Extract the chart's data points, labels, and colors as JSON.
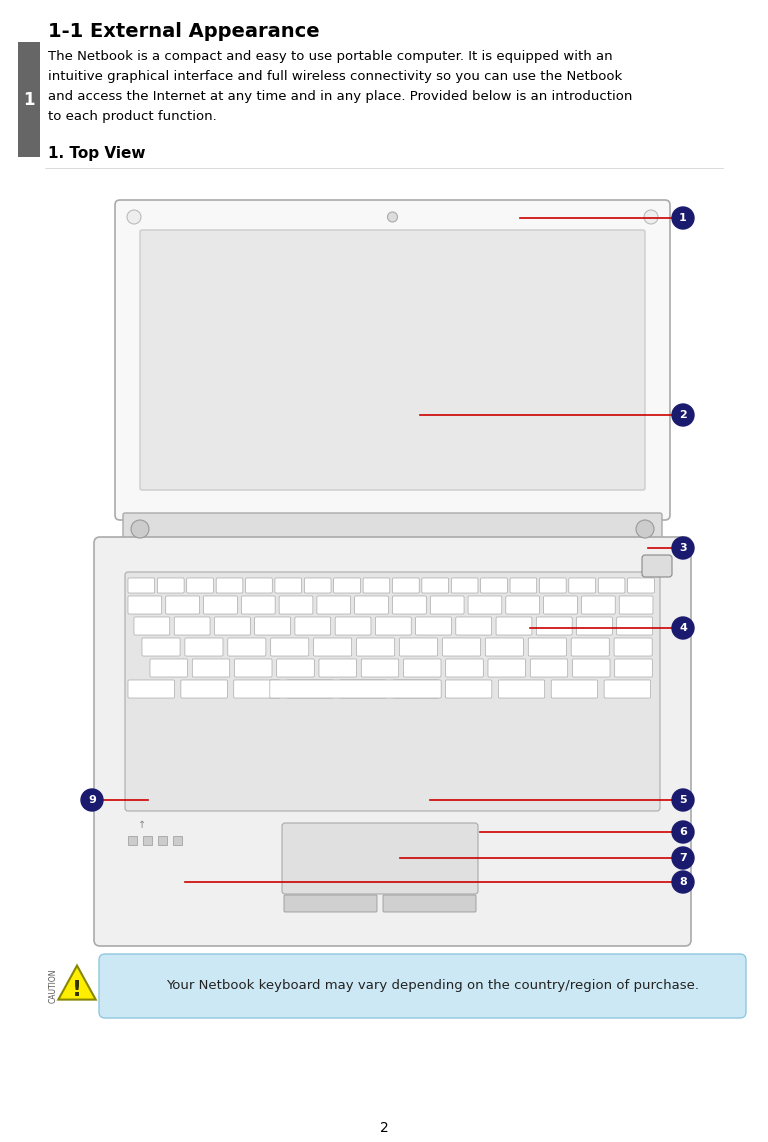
{
  "title": "1-1 External Appearance",
  "section_label": "1",
  "body_lines": [
    "The Netbook is a compact and easy to use portable computer. It is equipped with an",
    "intuitive graphical interface and full wireless connectivity so you can use the Netbook",
    "and access the Internet at any time and in any place. Provided below is an introduction",
    "to each product function."
  ],
  "subheading": "1. Top View",
  "caution_text": "Your Netbook keyboard may vary depending on the country/region of purchase.",
  "page_number": "2",
  "bg_color": "#ffffff",
  "title_color": "#000000",
  "body_color": "#000000",
  "red_line_color": "#cc0000",
  "callout_circle_color": "#1a1a6e",
  "callout_text_color": "#ffffff",
  "caution_box_color": "#cce8f4",
  "tab_color": "#666666"
}
